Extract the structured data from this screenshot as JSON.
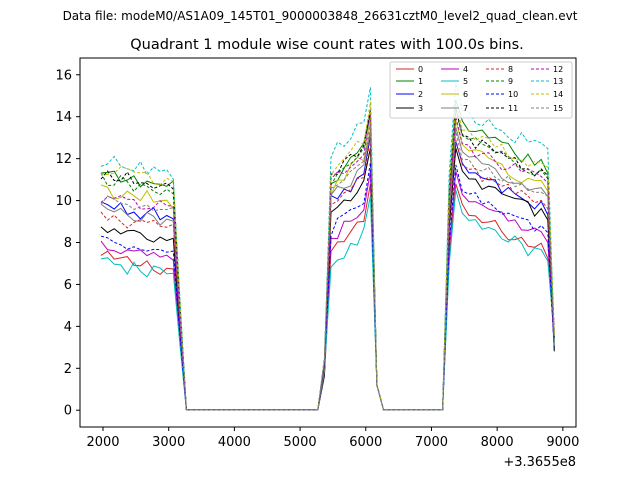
{
  "chart_data": {
    "type": "line",
    "suptitle": "Data file: modeM0/AS1A09_145T01_9000003848_26631cztM0_level2_quad_clean.evt",
    "title": "Quadrant 1 module wise count rates with 100.0s bins.",
    "xlabel": "",
    "ylabel": "",
    "x_offset_label": "+3.3655e8",
    "xlim": [
      1650,
      9200
    ],
    "ylim": [
      -0.8,
      16.8
    ],
    "x_ticks": [
      2000,
      3000,
      4000,
      5000,
      6000,
      7000,
      8000,
      9000
    ],
    "x_tick_labels": [
      "2000",
      "3000",
      "4000",
      "5000",
      "6000",
      "7000",
      "8000",
      "9000"
    ],
    "y_ticks": [
      0,
      2,
      4,
      6,
      8,
      10,
      12,
      14,
      16
    ],
    "y_tick_labels": [
      "0",
      "2",
      "4",
      "6",
      "8",
      "10",
      "12",
      "14",
      "16"
    ],
    "grid": false,
    "legend_position": "top-right",
    "legend_columns": 4,
    "segments": [
      {
        "start": 1970,
        "end": 3070,
        "step": 100
      },
      {
        "start": 3170,
        "end": 3270,
        "step": 100
      },
      {
        "start": 5270,
        "end": 5370,
        "step": 100
      },
      {
        "start": 5370,
        "end": 6070,
        "step": 100
      },
      {
        "start": 6170,
        "end": 6270,
        "step": 100
      },
      {
        "start": 7170,
        "end": 7270,
        "step": 100
      },
      {
        "start": 7270,
        "end": 8870,
        "step": 100
      }
    ],
    "x": [
      1970,
      2070,
      2170,
      2270,
      2370,
      2470,
      2570,
      2670,
      2770,
      2870,
      2970,
      3070,
      3170,
      3270,
      3370,
      3470,
      3570,
      3670,
      3770,
      3870,
      3970,
      4070,
      4170,
      4270,
      4370,
      4470,
      4570,
      4670,
      4770,
      4870,
      4970,
      5070,
      5170,
      5270,
      5370,
      5470,
      5570,
      5670,
      5770,
      5870,
      5970,
      6070,
      6170,
      6270,
      6370,
      6470,
      6570,
      6670,
      6770,
      6870,
      6970,
      7070,
      7170,
      7270,
      7370,
      7470,
      7570,
      7670,
      7770,
      7870,
      7970,
      8070,
      8170,
      8270,
      8370,
      8470,
      8570,
      8670,
      8770,
      8870
    ],
    "series": [
      {
        "name": "0",
        "color": "#d62728",
        "dashed": false,
        "start_level": 7.3,
        "mid_level": 7.6,
        "end_level": 8.5,
        "jitter": 0.35
      },
      {
        "name": "1",
        "color": "#008000",
        "dashed": false,
        "start_level": 11.2,
        "mid_level": 11.0,
        "end_level": 12.5,
        "jitter": 0.35
      },
      {
        "name": "2",
        "color": "#0000ff",
        "dashed": false,
        "start_level": 9.8,
        "mid_level": 9.9,
        "end_level": 10.5,
        "jitter": 0.35
      },
      {
        "name": "3",
        "color": "#000000",
        "dashed": false,
        "start_level": 8.6,
        "mid_level": 9.3,
        "end_level": 10.2,
        "jitter": 0.3
      },
      {
        "name": "4",
        "color": "#bf00bf",
        "dashed": false,
        "start_level": 7.9,
        "mid_level": 8.2,
        "end_level": 9.1,
        "jitter": 0.3
      },
      {
        "name": "5",
        "color": "#00bfbf",
        "dashed": false,
        "start_level": 7.0,
        "mid_level": 7.0,
        "end_level": 8.2,
        "jitter": 0.35
      },
      {
        "name": "6",
        "color": "#bfbf00",
        "dashed": false,
        "start_level": 10.5,
        "mid_level": 10.6,
        "end_level": 11.5,
        "jitter": 0.35
      },
      {
        "name": "7",
        "color": "#808080",
        "dashed": false,
        "start_level": 9.6,
        "mid_level": 10.1,
        "end_level": 11.2,
        "jitter": 0.3
      },
      {
        "name": "8",
        "color": "#d62728",
        "dashed": true,
        "start_level": 9.2,
        "mid_level": 9.8,
        "end_level": 10.6,
        "jitter": 0.3
      },
      {
        "name": "9",
        "color": "#008000",
        "dashed": true,
        "start_level": 11.0,
        "mid_level": 10.9,
        "end_level": 12.0,
        "jitter": 0.35
      },
      {
        "name": "10",
        "color": "#0000ff",
        "dashed": true,
        "start_level": 8.0,
        "mid_level": 8.6,
        "end_level": 9.4,
        "jitter": 0.3
      },
      {
        "name": "11",
        "color": "#000000",
        "dashed": true,
        "start_level": 11.3,
        "mid_level": 11.1,
        "end_level": 12.1,
        "jitter": 0.3
      },
      {
        "name": "12",
        "color": "#bf00bf",
        "dashed": true,
        "start_level": 10.2,
        "mid_level": 11.0,
        "end_level": 11.7,
        "jitter": 0.35
      },
      {
        "name": "13",
        "color": "#00bfbf",
        "dashed": true,
        "start_level": 11.9,
        "mid_level": 12.2,
        "end_level": 13.3,
        "jitter": 0.35
      },
      {
        "name": "14",
        "color": "#bfbf00",
        "dashed": true,
        "start_level": 11.5,
        "mid_level": 11.5,
        "end_level": 12.4,
        "jitter": 0.3
      },
      {
        "name": "15",
        "color": "#808080",
        "dashed": true,
        "start_level": 10.0,
        "mid_level": 10.4,
        "end_level": 11.0,
        "jitter": 0.3
      }
    ]
  }
}
